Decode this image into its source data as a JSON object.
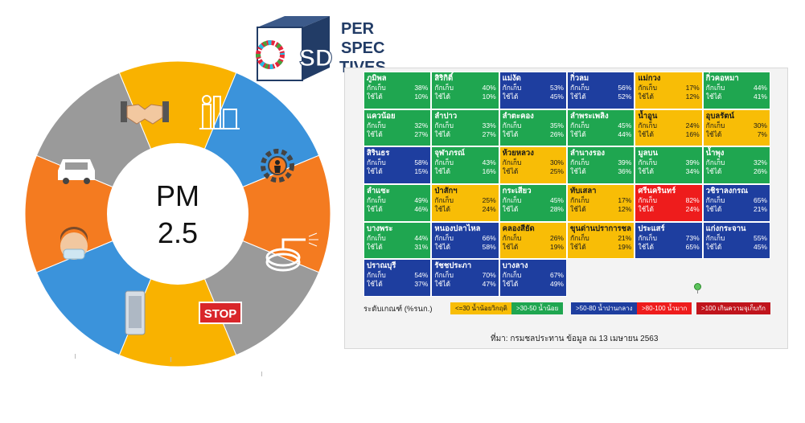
{
  "donut": {
    "center_line1": "PM",
    "center_line2": "2.5",
    "segments": [
      {
        "color": "#f9b200",
        "icon": "handshake-icon"
      },
      {
        "color": "#3b93db",
        "icon": "factory-icon"
      },
      {
        "color": "#f47b20",
        "icon": "construction-worker-gear-icon"
      },
      {
        "color": "#9a9a9a",
        "icon": "water-hose-icon"
      },
      {
        "color": "#f9b200",
        "icon": "stop-sign-icon"
      },
      {
        "color": "#3b93db",
        "icon": "air-purifier-icon"
      },
      {
        "color": "#f47b20",
        "icon": "face-mask-icon"
      },
      {
        "color": "#9a9a9a",
        "icon": "car-icon"
      }
    ],
    "stop_text": "STOP"
  },
  "logo": {
    "sd": "SD",
    "line1": "PER",
    "line2": "SPEC",
    "line3": "TIVES"
  },
  "grid": {
    "label_a": "กักเก็บ",
    "label_b": "ใช้ได้",
    "colors": {
      "yellow": "#f8bd06",
      "green": "#1fa650",
      "blue": "#1e3e9f",
      "red": "#ee1c1c"
    },
    "rows": [
      [
        {
          "name": "ภูมิพล",
          "a": "38%",
          "b": "10%",
          "color": "green"
        },
        {
          "name": "สิริกิติ์",
          "a": "40%",
          "b": "10%",
          "color": "green"
        },
        {
          "name": "แม่งัด",
          "a": "53%",
          "b": "45%",
          "color": "blue"
        },
        {
          "name": "กิ่วลม",
          "a": "56%",
          "b": "52%",
          "color": "blue"
        },
        {
          "name": "แม่กวง",
          "a": "17%",
          "b": "12%",
          "color": "yellow"
        },
        {
          "name": "กิ่วคอหมา",
          "a": "44%",
          "b": "41%",
          "color": "green"
        }
      ],
      [
        {
          "name": "แควน้อย",
          "a": "32%",
          "b": "27%",
          "color": "green"
        },
        {
          "name": "ลำปาว",
          "a": "33%",
          "b": "27%",
          "color": "green"
        },
        {
          "name": "ลำตะคอง",
          "a": "35%",
          "b": "26%",
          "color": "green"
        },
        {
          "name": "ลำพระเพลิง",
          "a": "45%",
          "b": "44%",
          "color": "green"
        },
        {
          "name": "น้ำอูน",
          "a": "24%",
          "b": "16%",
          "color": "yellow"
        },
        {
          "name": "อุบลรัตน์",
          "a": "30%",
          "b": "7%",
          "color": "yellow"
        }
      ],
      [
        {
          "name": "สิรินธร",
          "a": "58%",
          "b": "15%",
          "color": "blue"
        },
        {
          "name": "จุฬาภรณ์",
          "a": "43%",
          "b": "16%",
          "color": "green"
        },
        {
          "name": "ห้วยหลวง",
          "a": "30%",
          "b": "25%",
          "color": "yellow"
        },
        {
          "name": "ลำนางรอง",
          "a": "39%",
          "b": "36%",
          "color": "green"
        },
        {
          "name": "มูลบน",
          "a": "39%",
          "b": "34%",
          "color": "green"
        },
        {
          "name": "น้ำพุง",
          "a": "32%",
          "b": "26%",
          "color": "green"
        }
      ],
      [
        {
          "name": "ลำแซะ",
          "a": "49%",
          "b": "46%",
          "color": "green"
        },
        {
          "name": "ป่าสักฯ",
          "a": "25%",
          "b": "24%",
          "color": "yellow"
        },
        {
          "name": "กระเสียว",
          "a": "45%",
          "b": "28%",
          "color": "green"
        },
        {
          "name": "ทับเสลา",
          "a": "17%",
          "b": "12%",
          "color": "yellow"
        },
        {
          "name": "ศรีนครินทร์",
          "a": "82%",
          "b": "24%",
          "color": "red"
        },
        {
          "name": "วชิราลงกรณ",
          "a": "65%",
          "b": "21%",
          "color": "blue"
        }
      ],
      [
        {
          "name": "บางพระ",
          "a": "44%",
          "b": "31%",
          "color": "green"
        },
        {
          "name": "หนองปลาไหล",
          "a": "66%",
          "b": "58%",
          "color": "blue"
        },
        {
          "name": "คลองสียัด",
          "a": "26%",
          "b": "19%",
          "color": "yellow"
        },
        {
          "name": "ขุนด่านปราการชล",
          "a": "21%",
          "b": "19%",
          "color": "yellow"
        },
        {
          "name": "ประแสร์",
          "a": "73%",
          "b": "65%",
          "color": "blue"
        },
        {
          "name": "แก่งกระจาน",
          "a": "55%",
          "b": "45%",
          "color": "blue"
        }
      ],
      [
        {
          "name": "ปราณบุรี",
          "a": "54%",
          "b": "37%",
          "color": "blue"
        },
        {
          "name": "รัชชประภา",
          "a": "70%",
          "b": "47%",
          "color": "blue"
        },
        {
          "name": "บางลาง",
          "a": "67%",
          "b": "49%",
          "color": "blue"
        }
      ]
    ]
  },
  "legend": {
    "title": "ระดับเกณฑ์ (%รนก.)",
    "items": [
      {
        "label": "<=30 น้ำน้อยวิกฤติ",
        "color": "#f8bd06",
        "text_color": "#1a1a1a"
      },
      {
        "label": ">30-50 น้ำน้อย",
        "color": "#1fa650",
        "text_color": "#ffffff"
      },
      {
        "label": ">50-80 น้ำปานกลาง",
        "color": "#1e3e9f",
        "text_color": "#ffffff"
      },
      {
        "label": ">80-100 น้ำมาก",
        "color": "#ee1c1c",
        "text_color": "#ffffff"
      },
      {
        "label": ">100 เกินความจุเก็บกัก",
        "color": "#c0141c",
        "text_color": "#ffffff"
      }
    ]
  },
  "source": "ที่มา: กรมชลประทาน ข้อมูล ณ 13 เมษายน 2563"
}
